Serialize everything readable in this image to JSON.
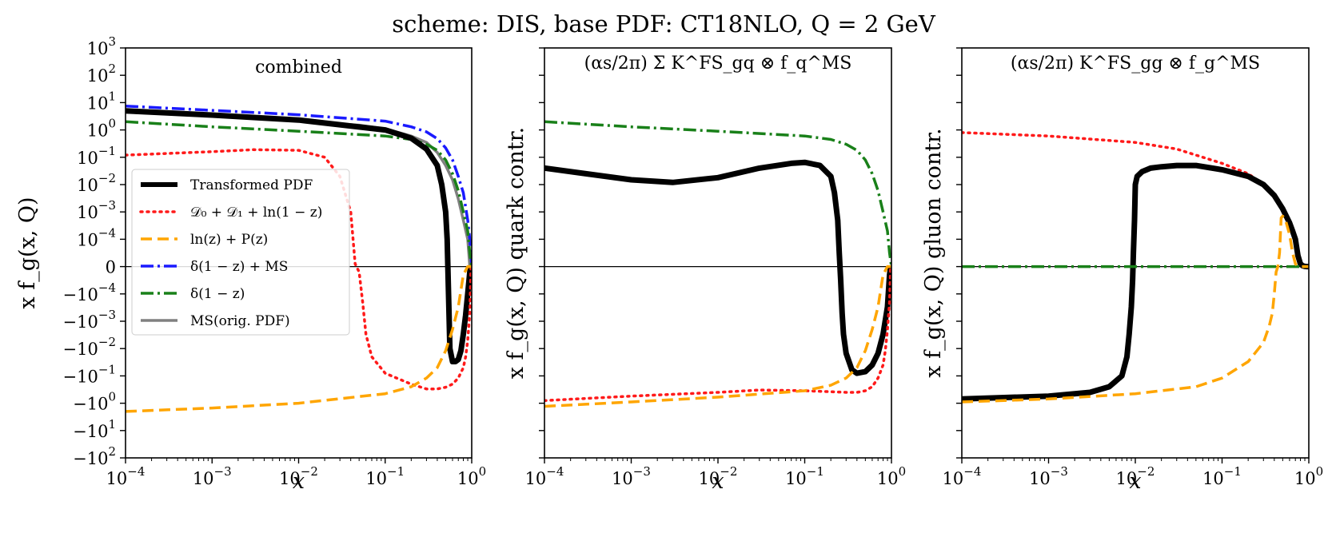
{
  "chart_data": {
    "type": "line",
    "title": "scheme: DIS, base PDF: CT18NLO, Q = 2 GeV",
    "xscale": "log",
    "xlabel": "x",
    "xlim": [
      0.0001,
      1
    ],
    "x_ticks": [
      "10",
      "10",
      "10",
      "10",
      "10"
    ],
    "x_tick_exps": [
      "−4",
      "−3",
      "−2",
      "−1",
      "0"
    ],
    "yscale": "symlog",
    "ylim": [
      -100,
      1000
    ],
    "y_ticks": [
      "10",
      "10",
      "10",
      "10",
      "10",
      "10",
      "10",
      "10",
      "0",
      "−10",
      "−10",
      "−10",
      "−10",
      "−10",
      "−10",
      "−10"
    ],
    "y_tick_exps": [
      "3",
      "2",
      "1",
      "0",
      "−1",
      "−2",
      "−3",
      "−4",
      "",
      "−4",
      "−3",
      "−2",
      "−1",
      "0",
      "1",
      "2"
    ],
    "series_styles": {
      "transformed": {
        "color": "#000000",
        "dash": "none",
        "width": 7
      },
      "distributions": {
        "color": "#ff1a1a",
        "dash": "2 6",
        "width": 3.5
      },
      "regular": {
        "color": "#ffa500",
        "dash": "14 7",
        "width": 3.5
      },
      "delta_msbar": {
        "color": "#1a1aff",
        "dash": "16 5 3 5",
        "width": 3.5
      },
      "delta": {
        "color": "#198019",
        "dash": "16 5 3 5",
        "width": 3.5
      },
      "msbar": {
        "color": "#808080",
        "dash": "none",
        "width": 3.5
      }
    },
    "legend": {
      "placement": "center-left of first panel",
      "entries": [
        {
          "key": "transformed",
          "label": "Transformed PDF"
        },
        {
          "key": "distributions",
          "label": "𝒟₀ + 𝒟₁ + ln(1 − z)"
        },
        {
          "key": "regular",
          "label": "ln(z) + P(z)"
        },
        {
          "key": "delta_msbar",
          "label": "δ(1 − z) + MS"
        },
        {
          "key": "delta",
          "label": "δ(1 − z)"
        },
        {
          "key": "msbar",
          "label": "MS(orig. PDF)"
        }
      ]
    },
    "panels": [
      {
        "id": "combined",
        "title": "combined",
        "ylabel": "x f_g(x, Q)",
        "show_y_tick_labels": true,
        "series": [
          {
            "key": "msbar",
            "x": [
              0.0001,
              0.001,
              0.01,
              0.05,
              0.1,
              0.2,
              0.3,
              0.4,
              0.5,
              0.6,
              0.7,
              0.8,
              0.9,
              0.95
            ],
            "y": [
              4.5,
              3.2,
              2.1,
              1.5,
              1.1,
              0.6,
              0.35,
              0.15,
              0.05,
              0.015,
              0.003,
              0.0005,
              0.0001,
              0
            ]
          },
          {
            "key": "delta_msbar",
            "x": [
              0.0001,
              0.001,
              0.01,
              0.1,
              0.2,
              0.3,
              0.4,
              0.5,
              0.6,
              0.7,
              0.8,
              0.9,
              0.95,
              1.0
            ],
            "y": [
              7.5,
              5.2,
              3.6,
              2.1,
              1.3,
              0.85,
              0.48,
              0.22,
              0.08,
              0.02,
              0.005,
              0.0005,
              0.0001,
              0
            ]
          },
          {
            "key": "delta",
            "x": [
              0.0001,
              0.001,
              0.01,
              0.1,
              0.2,
              0.3,
              0.4,
              0.5,
              0.6,
              0.7,
              0.8,
              0.9,
              0.95,
              1.0
            ],
            "y": [
              2.0,
              1.3,
              0.9,
              0.6,
              0.45,
              0.3,
              0.18,
              0.08,
              0.025,
              0.006,
              0.001,
              0.0002,
              5e-05,
              0
            ]
          },
          {
            "key": "transformed",
            "x": [
              0.0001,
              0.001,
              0.01,
              0.1,
              0.2,
              0.3,
              0.4,
              0.45,
              0.5,
              0.52,
              0.54,
              0.56,
              0.6,
              0.65,
              0.7,
              0.75,
              0.8,
              0.85,
              0.9,
              0.95,
              0.98
            ],
            "y": [
              5.0,
              3.5,
              2.3,
              1.0,
              0.5,
              0.2,
              0.05,
              0.01,
              0.001,
              0.0001,
              -0.0001,
              -0.01,
              -0.03,
              -0.03,
              -0.025,
              -0.012,
              -0.003,
              -0.0006,
              -0.0001,
              -2e-05,
              0
            ]
          },
          {
            "key": "distributions",
            "x": [
              0.0001,
              0.001,
              0.003,
              0.01,
              0.02,
              0.03,
              0.04,
              0.045,
              0.05,
              0.055,
              0.06,
              0.07,
              0.1,
              0.2,
              0.3,
              0.4,
              0.5,
              0.6,
              0.7,
              0.8,
              0.85,
              0.9,
              0.95,
              0.98
            ],
            "y": [
              0.12,
              0.16,
              0.19,
              0.18,
              0.1,
              0.02,
              0.001,
              1e-05,
              -2e-05,
              -0.0002,
              -0.003,
              -0.02,
              -0.08,
              -0.2,
              -0.3,
              -0.3,
              -0.26,
              -0.2,
              -0.12,
              -0.05,
              -0.02,
              -0.005,
              -0.0005,
              0
            ]
          },
          {
            "key": "regular",
            "x": [
              0.0001,
              0.001,
              0.01,
              0.1,
              0.2,
              0.3,
              0.4,
              0.5,
              0.6,
              0.7,
              0.8,
              0.9,
              0.95,
              1.0
            ],
            "y": [
              -2.0,
              -1.5,
              -1.0,
              -0.45,
              -0.25,
              -0.12,
              -0.05,
              -0.012,
              -0.002,
              -0.0003,
              -3e-05,
              0,
              0,
              0
            ]
          }
        ]
      },
      {
        "id": "quark",
        "title": "(αs/2π) Σ K^FS_gq ⊗ f_q^MS",
        "ylabel": "x f_g(x, Q) quark contr.",
        "show_y_tick_labels": false,
        "series": [
          {
            "key": "delta",
            "x": [
              0.0001,
              0.001,
              0.01,
              0.1,
              0.2,
              0.3,
              0.4,
              0.5,
              0.6,
              0.7,
              0.8,
              0.9,
              0.95,
              1.0
            ],
            "y": [
              2.0,
              1.3,
              0.9,
              0.6,
              0.45,
              0.3,
              0.18,
              0.08,
              0.025,
              0.006,
              0.001,
              0.0002,
              5e-05,
              0
            ]
          },
          {
            "key": "transformed",
            "x": [
              0.0001,
              0.0003,
              0.001,
              0.003,
              0.01,
              0.03,
              0.07,
              0.1,
              0.15,
              0.2,
              0.22,
              0.24,
              0.25,
              0.26,
              0.27,
              0.28,
              0.3,
              0.35,
              0.4,
              0.5,
              0.6,
              0.7,
              0.8,
              0.9,
              0.95,
              0.98
            ],
            "y": [
              0.04,
              0.025,
              0.015,
              0.012,
              0.018,
              0.04,
              0.06,
              0.065,
              0.05,
              0.02,
              0.005,
              0.0005,
              5e-05,
              -5e-05,
              -0.0005,
              -0.003,
              -0.015,
              -0.06,
              -0.08,
              -0.07,
              -0.04,
              -0.015,
              -0.003,
              -0.0003,
              -3e-05,
              0
            ]
          },
          {
            "key": "distributions",
            "x": [
              0.0001,
              0.001,
              0.01,
              0.03,
              0.1,
              0.2,
              0.3,
              0.4,
              0.5,
              0.6,
              0.7,
              0.8,
              0.85,
              0.9,
              0.95,
              0.98
            ],
            "y": [
              -0.8,
              -0.55,
              -0.4,
              -0.33,
              -0.35,
              -0.38,
              -0.4,
              -0.4,
              -0.35,
              -0.25,
              -0.12,
              -0.04,
              -0.012,
              -0.002,
              -0.0002,
              0
            ]
          },
          {
            "key": "regular",
            "x": [
              0.0001,
              0.001,
              0.01,
              0.1,
              0.2,
              0.3,
              0.4,
              0.5,
              0.6,
              0.7,
              0.8,
              0.9,
              0.95,
              1.0
            ],
            "y": [
              -1.3,
              -0.9,
              -0.6,
              -0.35,
              -0.22,
              -0.12,
              -0.05,
              -0.012,
              -0.002,
              -0.0003,
              -3e-05,
              0,
              0,
              0
            ]
          }
        ]
      },
      {
        "id": "gluon",
        "title": "(αs/2π) K^FS_gg ⊗ f_g^MS",
        "ylabel": "x f_g(x, Q) gluon contr.",
        "show_y_tick_labels": false,
        "series": [
          {
            "key": "distributions",
            "x": [
              0.0001,
              0.001,
              0.01,
              0.03,
              0.1,
              0.2,
              0.3,
              0.4,
              0.5,
              0.6,
              0.7,
              0.8,
              0.85,
              0.9,
              0.95,
              1.0
            ],
            "y": [
              0.8,
              0.6,
              0.35,
              0.2,
              0.06,
              0.025,
              0.01,
              0.004,
              0.0013,
              0.0004,
              0.0001,
              2e-05,
              5e-06,
              0,
              0,
              0
            ]
          },
          {
            "key": "transformed",
            "x": [
              0.0001,
              0.001,
              0.003,
              0.005,
              0.007,
              0.008,
              0.0085,
              0.009,
              0.0093,
              0.0095,
              0.0098,
              0.01,
              0.0105,
              0.012,
              0.015,
              0.02,
              0.03,
              0.05,
              0.1,
              0.2,
              0.3,
              0.4,
              0.5,
              0.6,
              0.65,
              0.7,
              0.75,
              0.8,
              0.85,
              0.9,
              0.95,
              1.0
            ],
            "y": [
              -0.7,
              -0.55,
              -0.4,
              -0.25,
              -0.1,
              -0.02,
              -0.003,
              -0.0003,
              -5e-05,
              5e-05,
              0.0005,
              0.01,
              0.02,
              0.03,
              0.04,
              0.045,
              0.05,
              0.05,
              0.035,
              0.02,
              0.01,
              0.004,
              0.0013,
              0.0004,
              0.0002,
              0.0001,
              4e-05,
              1e-05,
              3e-06,
              5e-07,
              0,
              0
            ]
          },
          {
            "key": "delta",
            "x": [
              0.0001,
              1.0
            ],
            "y": [
              0,
              0
            ]
          },
          {
            "key": "regular",
            "x": [
              0.0001,
              0.001,
              0.01,
              0.05,
              0.1,
              0.2,
              0.3,
              0.35,
              0.38,
              0.4,
              0.42,
              0.44,
              0.46,
              0.48,
              0.5,
              0.52,
              0.55,
              0.6,
              0.65,
              0.7,
              0.75,
              0.8,
              0.85,
              0.9,
              0.95,
              1.0
            ],
            "y": [
              -0.9,
              -0.7,
              -0.45,
              -0.25,
              -0.12,
              -0.03,
              -0.006,
              -0.0015,
              -0.0005,
              -0.0001,
              -2e-05,
              0,
              5e-05,
              0.0006,
              0.0007,
              0.0006,
              0.0004,
              0.00015,
              5e-05,
              1e-05,
              2e-06,
              0,
              0,
              0,
              0,
              0
            ]
          }
        ]
      }
    ]
  }
}
